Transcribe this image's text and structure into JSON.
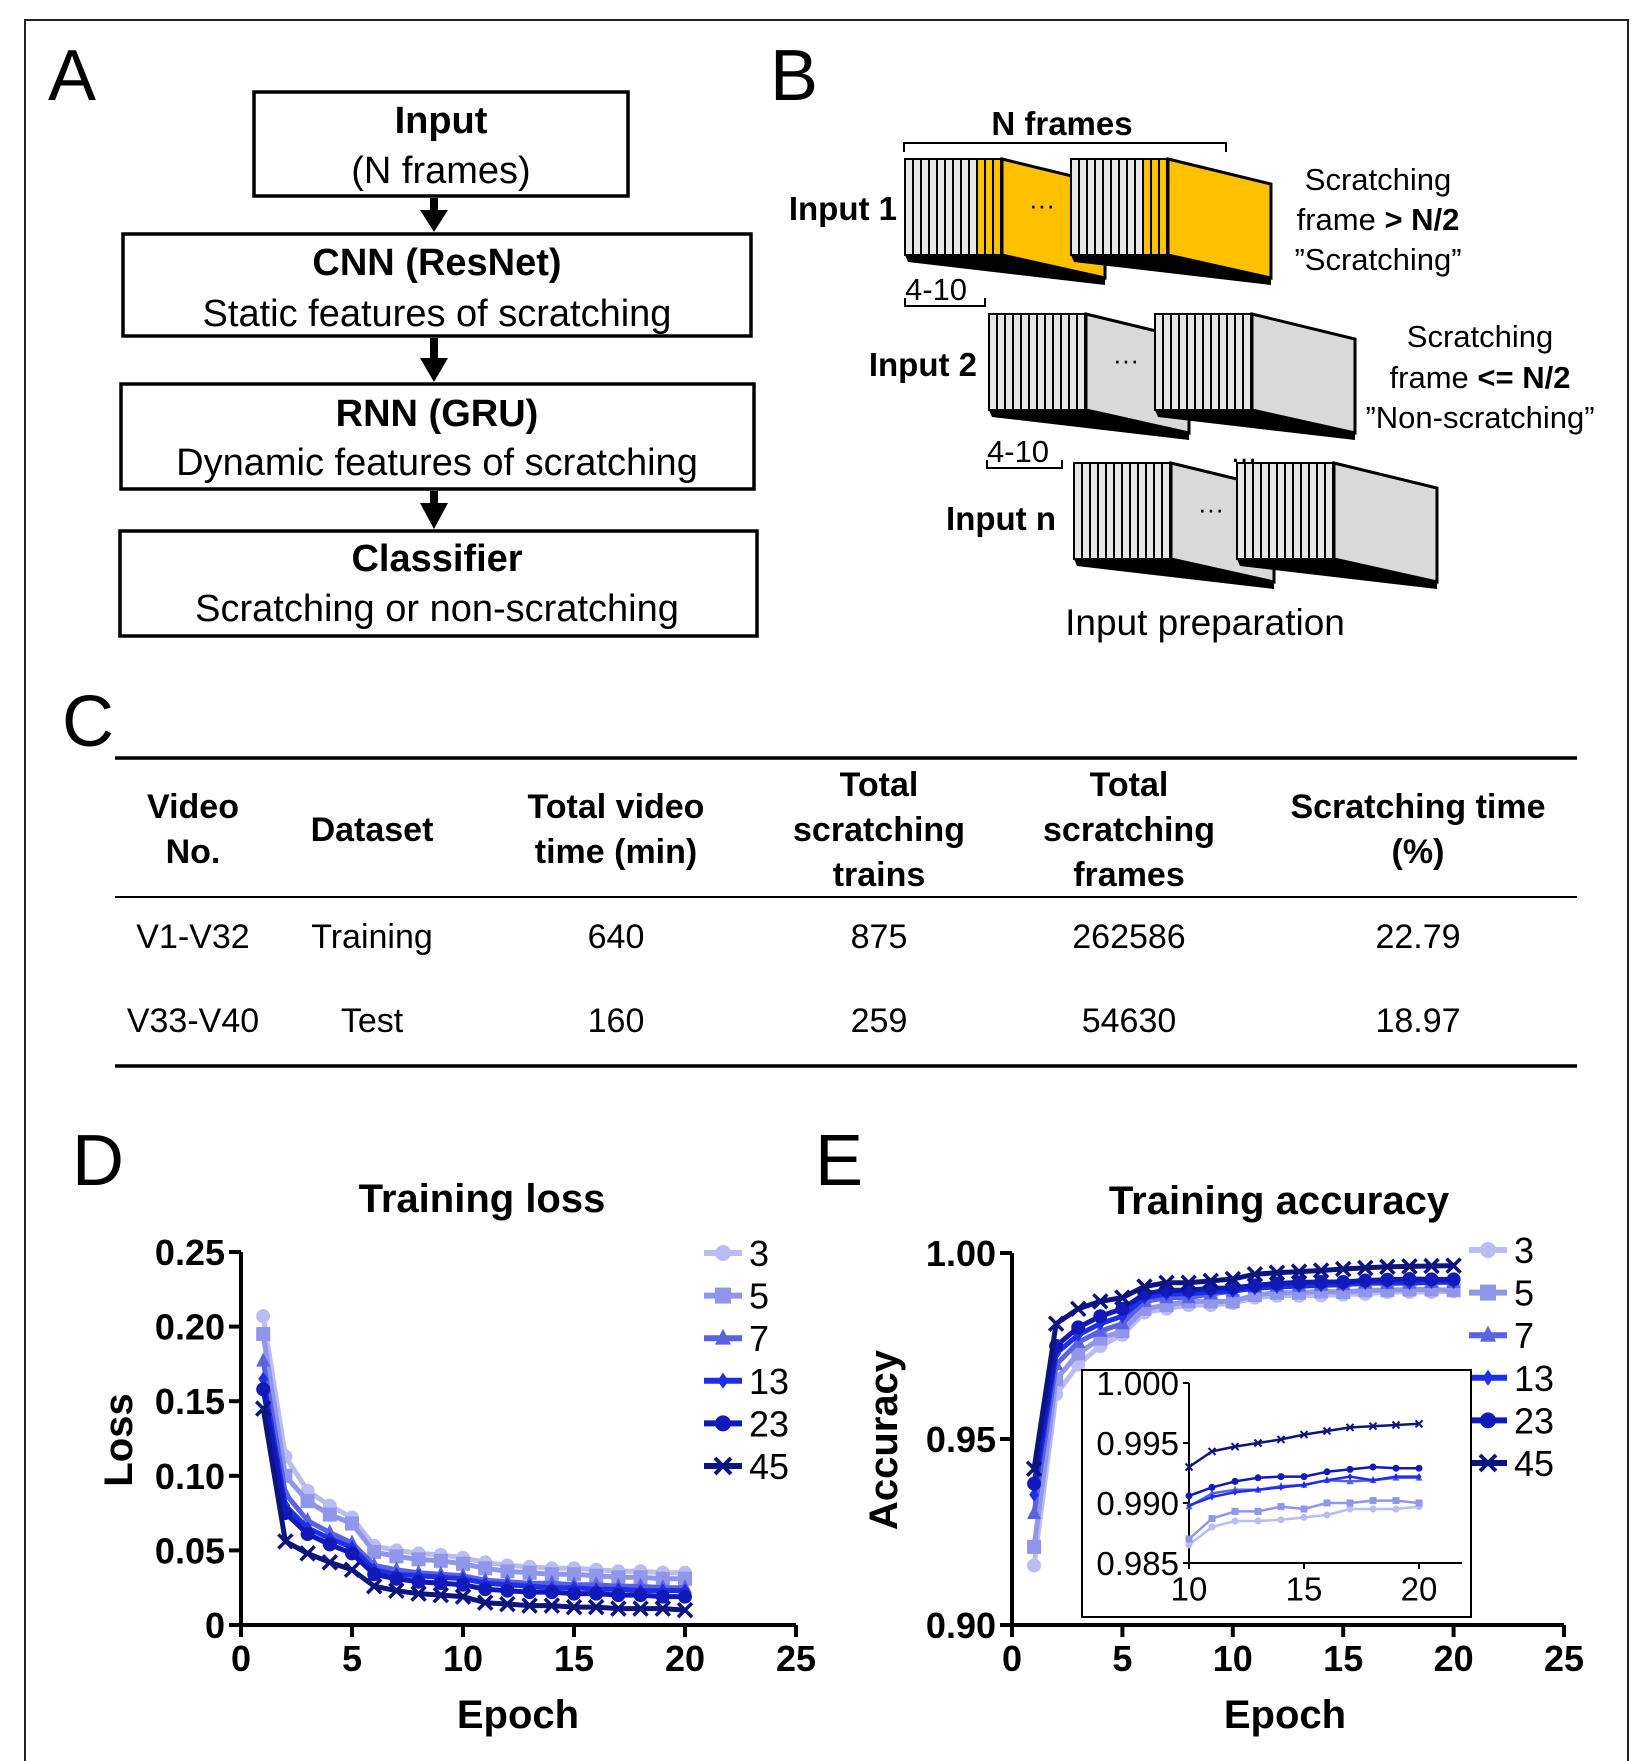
{
  "panel_labels": {
    "a": "A",
    "b": "B",
    "c": "C",
    "d": "D",
    "e": "E"
  },
  "flowchart": {
    "boxes": [
      {
        "title": "Input",
        "subtitle": "(N frames)"
      },
      {
        "title": "CNN (ResNet)",
        "subtitle": "Static features of scratching"
      },
      {
        "title": "RNN (GRU)",
        "subtitle": "Dynamic features of scratching"
      },
      {
        "title": "Classifier",
        "subtitle": "Scratching or non-scratching"
      }
    ]
  },
  "input_prep": {
    "n_frames_label": "N frames",
    "caption": "Input preparation",
    "ellipsis": "...",
    "face_ellipsis": "···",
    "inputs": [
      {
        "label": "Input 1",
        "range": "4-10",
        "note_line1": "Scratching",
        "note_line2_prefix": "frame ",
        "note_line2_bold": "> N/2",
        "note_line3": "”Scratching”",
        "color": "#ffc000"
      },
      {
        "label": "Input 2",
        "range": "4-10",
        "note_line1": "Scratching",
        "note_line2_prefix": "frame ",
        "note_line2_bold": "<= N/2",
        "note_line3": "”Non-scratching”",
        "color": "#d9d9d9"
      },
      {
        "label": "Input n",
        "color": "#d9d9d9"
      }
    ]
  },
  "table": {
    "headers": [
      [
        "Video",
        "No."
      ],
      [
        "Dataset"
      ],
      [
        "Total video",
        "time (min)"
      ],
      [
        "Total",
        "scratching",
        "trains"
      ],
      [
        "Total",
        "scratching",
        "frames"
      ],
      [
        "Scratching time",
        "(%)"
      ]
    ],
    "rows": [
      [
        "V1-V32",
        "Training",
        "640",
        "875",
        "262586",
        "22.79"
      ],
      [
        "V33-V40",
        "Test",
        "160",
        "259",
        "54630",
        "18.97"
      ]
    ]
  },
  "chart_data": [
    {
      "type": "line",
      "title": "Training loss",
      "xlabel": "Epoch",
      "ylabel": "Loss",
      "xlim": [
        0,
        25
      ],
      "ylim": [
        0,
        0.25
      ],
      "xticks": [
        "0",
        "5",
        "10",
        "15",
        "20",
        "25"
      ],
      "yticks": [
        "0",
        "0.05",
        "0.10",
        "0.15",
        "0.20",
        "0.25"
      ],
      "legend": "top-right",
      "grid": false,
      "x": [
        1,
        2,
        3,
        4,
        5,
        6,
        7,
        8,
        9,
        10,
        11,
        12,
        13,
        14,
        15,
        16,
        17,
        18,
        19,
        20
      ],
      "series": [
        {
          "name": "3",
          "color": "#b9bdf1",
          "marker": "circle",
          "values": [
            0.207,
            0.113,
            0.09,
            0.08,
            0.072,
            0.053,
            0.05,
            0.048,
            0.047,
            0.045,
            0.042,
            0.04,
            0.039,
            0.038,
            0.038,
            0.037,
            0.036,
            0.036,
            0.035,
            0.035
          ]
        },
        {
          "name": "5",
          "color": "#9096ea",
          "marker": "square",
          "values": [
            0.195,
            0.1,
            0.083,
            0.074,
            0.068,
            0.049,
            0.046,
            0.044,
            0.043,
            0.041,
            0.038,
            0.036,
            0.035,
            0.034,
            0.034,
            0.033,
            0.032,
            0.032,
            0.031,
            0.031
          ]
        },
        {
          "name": "7",
          "color": "#5a62e2",
          "marker": "triangle",
          "values": [
            0.177,
            0.088,
            0.07,
            0.062,
            0.055,
            0.04,
            0.037,
            0.035,
            0.034,
            0.033,
            0.03,
            0.029,
            0.028,
            0.028,
            0.027,
            0.027,
            0.026,
            0.026,
            0.025,
            0.025
          ]
        },
        {
          "name": "13",
          "color": "#1e2ee6",
          "marker": "diamond",
          "values": [
            0.165,
            0.08,
            0.065,
            0.058,
            0.052,
            0.037,
            0.034,
            0.033,
            0.032,
            0.031,
            0.028,
            0.027,
            0.026,
            0.025,
            0.025,
            0.024,
            0.024,
            0.023,
            0.023,
            0.023
          ]
        },
        {
          "name": "23",
          "color": "#1119b8",
          "marker": "dot",
          "values": [
            0.158,
            0.075,
            0.061,
            0.054,
            0.048,
            0.034,
            0.031,
            0.029,
            0.028,
            0.027,
            0.024,
            0.023,
            0.022,
            0.022,
            0.021,
            0.021,
            0.02,
            0.02,
            0.019,
            0.019
          ]
        },
        {
          "name": "45",
          "color": "#0c1480",
          "marker": "x",
          "values": [
            0.145,
            0.056,
            0.048,
            0.042,
            0.037,
            0.026,
            0.023,
            0.021,
            0.02,
            0.019,
            0.015,
            0.014,
            0.013,
            0.013,
            0.012,
            0.012,
            0.011,
            0.011,
            0.011,
            0.01
          ]
        }
      ]
    },
    {
      "type": "line",
      "title": "Training accuracy",
      "xlabel": "Epoch",
      "ylabel": "Accuracy",
      "xlim": [
        0,
        25
      ],
      "ylim": [
        0.9,
        1.0
      ],
      "xticks": [
        "0",
        "5",
        "10",
        "15",
        "20",
        "25"
      ],
      "yticks": [
        "0.90",
        "0.95",
        "1.00"
      ],
      "legend": "top-right",
      "grid": false,
      "x": [
        1,
        2,
        3,
        4,
        5,
        6,
        7,
        8,
        9,
        10,
        11,
        12,
        13,
        14,
        15,
        16,
        17,
        18,
        19,
        20
      ],
      "series": [
        {
          "name": "3",
          "color": "#b9bdf1",
          "marker": "circle",
          "values": [
            0.916,
            0.962,
            0.97,
            0.975,
            0.978,
            0.984,
            0.985,
            0.986,
            0.986,
            0.9865,
            0.988,
            0.9885,
            0.9885,
            0.9886,
            0.9888,
            0.989,
            0.9895,
            0.9895,
            0.9895,
            0.9897
          ]
        },
        {
          "name": "5",
          "color": "#9096ea",
          "marker": "square",
          "values": [
            0.921,
            0.966,
            0.973,
            0.977,
            0.979,
            0.985,
            0.986,
            0.987,
            0.987,
            0.987,
            0.9887,
            0.9893,
            0.9893,
            0.9897,
            0.9895,
            0.99,
            0.99,
            0.9902,
            0.9902,
            0.99
          ]
        },
        {
          "name": "7",
          "color": "#5a62e2",
          "marker": "triangle",
          "values": [
            0.93,
            0.97,
            0.976,
            0.979,
            0.981,
            0.987,
            0.988,
            0.988,
            0.989,
            0.9897,
            0.9908,
            0.9911,
            0.9911,
            0.9914,
            0.9915,
            0.9919,
            0.9918,
            0.9919,
            0.9921,
            0.9921
          ]
        },
        {
          "name": "13",
          "color": "#1e2ee6",
          "marker": "diamond",
          "values": [
            0.935,
            0.973,
            0.978,
            0.981,
            0.983,
            0.988,
            0.989,
            0.989,
            0.9895,
            0.9898,
            0.9905,
            0.9909,
            0.9911,
            0.9913,
            0.9915,
            0.9919,
            0.9922,
            0.9919,
            0.9922,
            0.9922
          ]
        },
        {
          "name": "23",
          "color": "#1119b8",
          "marker": "dot",
          "values": [
            0.938,
            0.975,
            0.98,
            0.983,
            0.985,
            0.989,
            0.99,
            0.99,
            0.9905,
            0.9906,
            0.9913,
            0.9918,
            0.9921,
            0.9922,
            0.9922,
            0.9926,
            0.9928,
            0.993,
            0.9929,
            0.9929
          ]
        },
        {
          "name": "45",
          "color": "#0c1480",
          "marker": "x",
          "values": [
            0.942,
            0.981,
            0.985,
            0.987,
            0.988,
            0.991,
            0.992,
            0.992,
            0.9925,
            0.993,
            0.9943,
            0.9947,
            0.995,
            0.9953,
            0.9957,
            0.996,
            0.9963,
            0.9964,
            0.9965,
            0.9966
          ]
        }
      ],
      "inset": {
        "xlim": [
          10,
          22
        ],
        "ylim": [
          0.985,
          1.0
        ],
        "xrange_shown": [
          10,
          20
        ],
        "xticks": [
          "10",
          "15",
          "20"
        ],
        "yticks": [
          "0.985",
          "0.990",
          "0.995",
          "1.000"
        ]
      }
    }
  ]
}
